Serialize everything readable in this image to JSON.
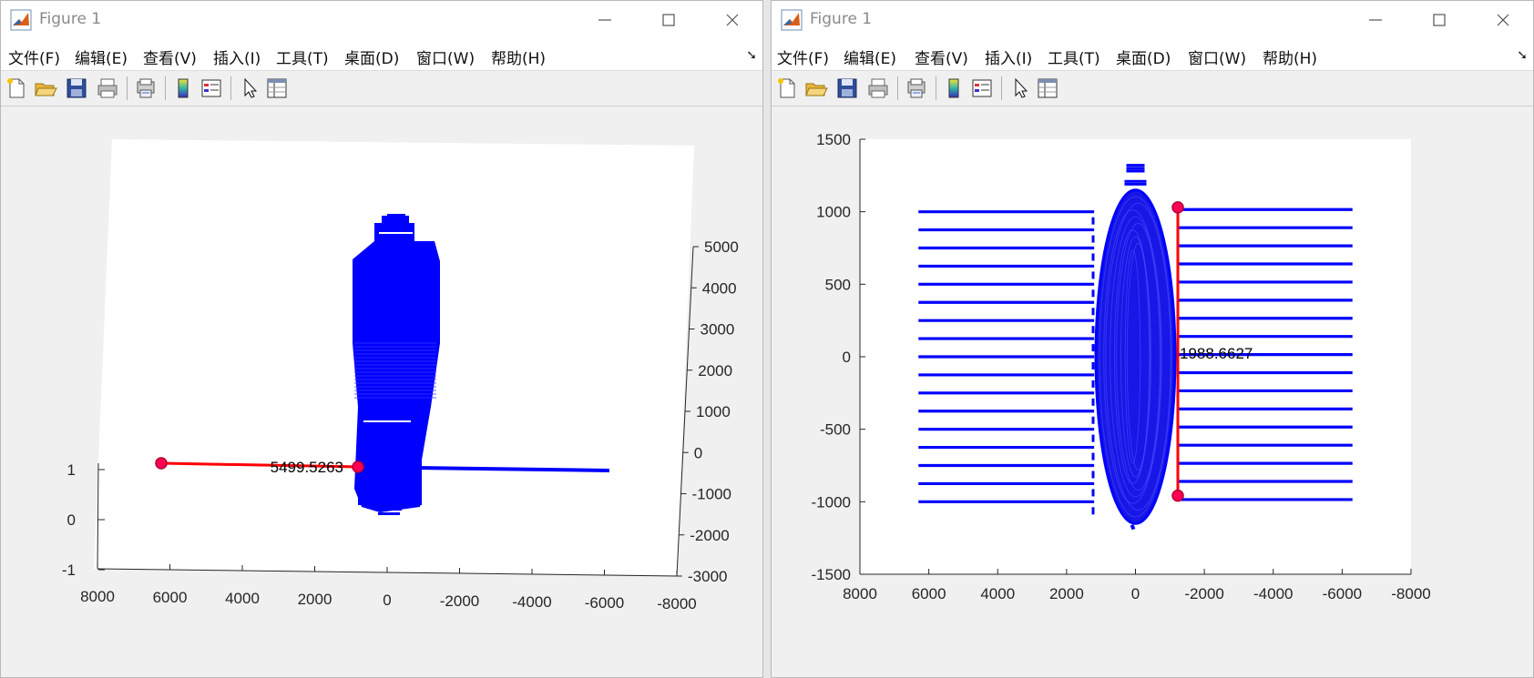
{
  "windows": [
    {
      "title": "Figure 1",
      "menu": [
        "文件(F)",
        "编辑(E)",
        "查看(V)",
        "插入(I)",
        "工具(T)",
        "桌面(D)",
        "窗口(W)",
        "帮助(H)"
      ],
      "toolbar_icons": [
        "new-figure-icon",
        "open-file-icon",
        "save-icon",
        "print-icon",
        "print-preview-icon",
        "colorbar-icon",
        "legend-icon",
        "pointer-icon",
        "property-inspector-icon"
      ]
    },
    {
      "title": "Figure 1",
      "menu": [
        "文件(F)",
        "编辑(E)",
        "查看(V)",
        "插入(I)",
        "工具(T)",
        "桌面(D)",
        "窗口(W)",
        "帮助(H)"
      ],
      "toolbar_icons": [
        "new-figure-icon",
        "open-file-icon",
        "save-icon",
        "print-icon",
        "print-preview-icon",
        "colorbar-icon",
        "legend-icon",
        "pointer-icon",
        "property-inspector-icon"
      ]
    }
  ],
  "chart_data": [
    {
      "type": "scatter",
      "view": "3d-rotated",
      "x_ticks": [
        "8000",
        "6000",
        "4000",
        "2000",
        "0",
        "-2000",
        "-4000",
        "-6000",
        "-8000"
      ],
      "y_ticks": [
        "5000",
        "4000",
        "3000",
        "2000",
        "1000",
        "0",
        "-1000",
        "-2000",
        "-3000"
      ],
      "z_ticks": [
        "1",
        "0",
        "-1"
      ],
      "xlim": [
        8000,
        -8000
      ],
      "series_color": "#0000ff",
      "annotation": {
        "label": "5499.5263",
        "color": "#ff0000",
        "marker_color": "#ff0055",
        "from": [
          6300,
          -330
        ],
        "to": [
          -800,
          -330
        ]
      }
    },
    {
      "type": "scatter",
      "view": "2d",
      "x_ticks": [
        "8000",
        "6000",
        "4000",
        "2000",
        "0",
        "-2000",
        "-4000",
        "-6000",
        "-8000"
      ],
      "y_ticks": [
        "1500",
        "1000",
        "500",
        "0",
        "-500",
        "-1000",
        "-1500"
      ],
      "xlim": [
        8000,
        -8000
      ],
      "ylim": [
        -1500,
        1500
      ],
      "series_color": "#0000ff",
      "horizontal_lines": {
        "left_x": [
          6300,
          1200
        ],
        "right_x": [
          -1200,
          -6300
        ],
        "y_values_left": [
          1000,
          875,
          750,
          625,
          500,
          375,
          250,
          125,
          0,
          -125,
          -250,
          -375,
          -500,
          -625,
          -750,
          -875,
          -1000
        ],
        "y_values_right": [
          1015,
          890,
          765,
          640,
          515,
          390,
          265,
          140,
          15,
          -110,
          -235,
          -360,
          -485,
          -610,
          -735,
          -860,
          -985
        ]
      },
      "ellipse": {
        "cx": 0,
        "cy": 0,
        "rx": 1150,
        "ry": 1150
      },
      "annotation": {
        "label": "1988.6627",
        "color": "#ff0000",
        "marker_color": "#ff0055",
        "from": [
          -1230,
          1030
        ],
        "to": [
          -1230,
          -958
        ]
      }
    }
  ]
}
